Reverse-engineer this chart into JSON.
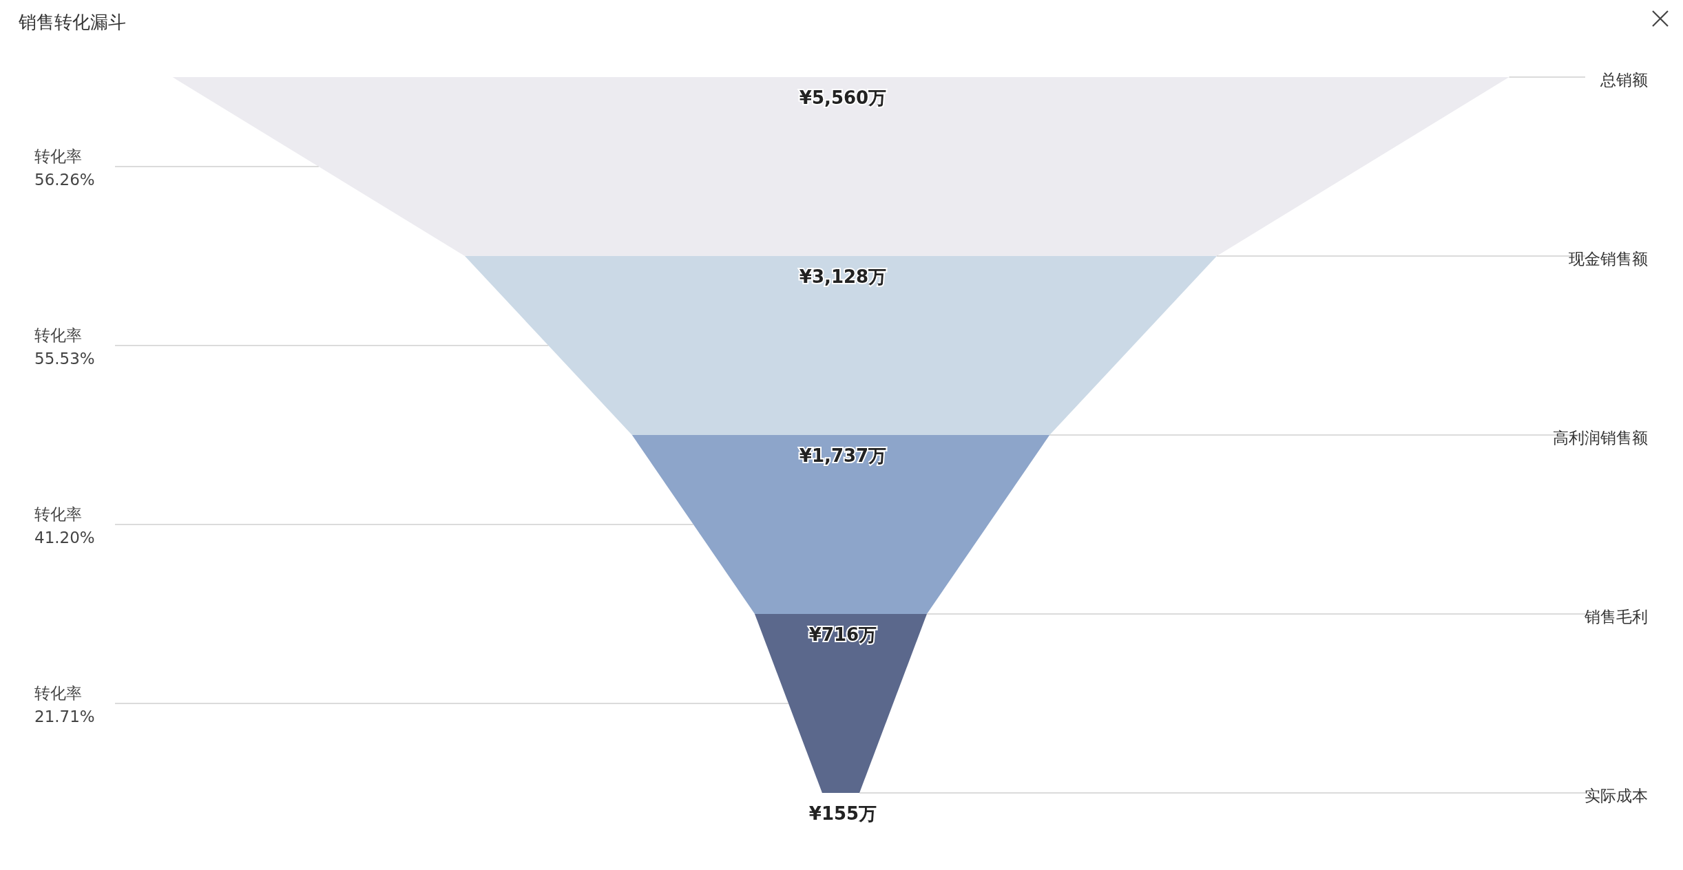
{
  "chart_data": {
    "type": "other",
    "title": "销售转化漏斗",
    "categories": [
      "总销额",
      "现金销售额",
      "高利润销售额",
      "销售毛利",
      "实际成本"
    ],
    "values": [
      5560,
      3128,
      1737,
      716,
      155
    ],
    "value_labels": [
      "¥5,560万",
      "¥3,128万",
      "¥1,737万",
      "¥716万",
      "¥155万"
    ],
    "colors": [
      "#ecebf0",
      "#cbd9e6",
      "#8da5ca",
      "#5b688c",
      "#5b688c"
    ],
    "annotations": [
      "转化率\n56.26%",
      "转化率\n55.53%",
      "转化率\n41.20%",
      "转化率\n21.71%"
    ]
  }
}
